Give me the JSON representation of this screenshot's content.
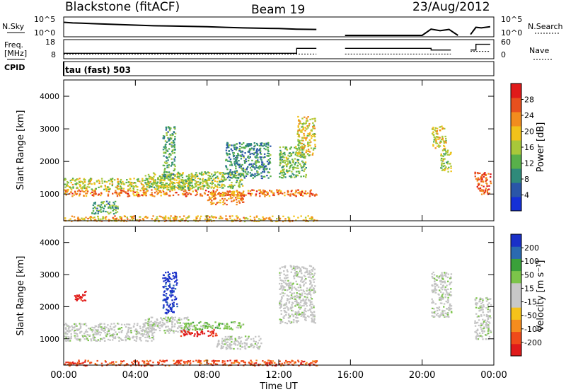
{
  "header": {
    "station": "Blackstone (fitACF)",
    "beam": "Beam 19",
    "date": "23/Aug/2012"
  },
  "strip_labels": {
    "nsky": "N.Sky",
    "freq_line1": "Freq.",
    "freq_line2": "[MHz]",
    "cpid": "CPID",
    "nsearch": "N.Search",
    "nave": "Nave",
    "cpid_value": "tau (fast) 503",
    "noise_top_left": "10^5",
    "noise_bot_left": "10^0",
    "noise_top_right": "10^5",
    "noise_bot_right": "10^0",
    "freq_top_left": "18",
    "freq_bot_left": "8",
    "freq_top_right": "60",
    "freq_bot_right": "0"
  },
  "axes": {
    "ylabel": "Slant Range [km]",
    "xlabel": "Time UT",
    "power_label": "Power [dB]",
    "velocity_label": "Velocity [m s⁻¹]"
  },
  "colors": {
    "power_scale": [
      "#1530d6",
      "#2a56a8",
      "#2f8a7a",
      "#58b04a",
      "#a8c83a",
      "#f2c21a",
      "#f28c1e",
      "#e8501e",
      "#e01a1a"
    ],
    "velocity_scale": [
      "#e01a1a",
      "#f04a1a",
      "#f58c1e",
      "#f5c21a",
      "#c8c8c8",
      "#c8c8c8",
      "#7cc44a",
      "#3aa03a",
      "#2a6ab0",
      "#1a30c8"
    ],
    "ground_scatter": "#c4c4c4"
  },
  "chart_data": [
    {
      "type": "line",
      "title": "N.Sky / N.Search",
      "x_unit": "hours UT",
      "xlim": [
        0,
        24
      ],
      "ylim_log10": [
        0,
        5
      ],
      "segments": [
        {
          "x": [
            0,
            0.5,
            1,
            2,
            3,
            4,
            5,
            6,
            7,
            8,
            9,
            10,
            11,
            12,
            13,
            14.1
          ],
          "y_log10": [
            4.2,
            4.0,
            3.9,
            3.7,
            3.5,
            3.3,
            3.1,
            3.0,
            2.9,
            2.8,
            2.6,
            2.4,
            2.3,
            2.2,
            2.0,
            1.9
          ]
        },
        {
          "x": [
            15.7,
            17,
            18,
            19,
            20,
            20.5,
            21,
            21.5,
            22
          ],
          "y_log10": [
            0,
            0,
            0,
            0,
            0,
            2.0,
            1.5,
            1.9,
            0
          ]
        },
        {
          "x": [
            22.7,
            23,
            23.3,
            23.8
          ],
          "y_log10": [
            0.3,
            2.6,
            2.4,
            2.8
          ]
        }
      ]
    },
    {
      "type": "line",
      "title": "Freq. / Nave",
      "x_unit": "hours UT",
      "xlim": [
        0,
        24
      ],
      "freq_ylim": [
        8,
        18
      ],
      "freq_segments": [
        {
          "x": [
            0,
            13.0,
            13.0,
            14.1
          ],
          "y": [
            10.5,
            10.5,
            13.5,
            13.5
          ]
        },
        {
          "x": [
            15.7,
            20.5,
            20.5,
            21.6
          ],
          "y": [
            13.5,
            13.5,
            12.5,
            12.5
          ]
        },
        {
          "x": [
            22.7,
            23.0,
            23.0,
            23.8
          ],
          "y": [
            12.5,
            12.5,
            16.0,
            16.0
          ]
        }
      ],
      "nave_ylim": [
        0,
        60
      ],
      "nave_segments": [
        {
          "x": [
            0,
            14.1
          ],
          "y": [
            12,
            12
          ]
        },
        {
          "x": [
            15.7,
            21.6
          ],
          "y": [
            12,
            12
          ]
        },
        {
          "x": [
            22.7,
            23.8
          ],
          "y": [
            22,
            22
          ]
        }
      ]
    },
    {
      "type": "heatmap",
      "title": "Power",
      "xlabel": "Time UT",
      "ylabel": "Slant Range [km]",
      "x_ticks": [
        "00:00",
        "04:00",
        "08:00",
        "12:00",
        "16:00",
        "20:00",
        "00:00"
      ],
      "y_ticks": [
        "1000",
        "2000",
        "3000",
        "4000"
      ],
      "xlim": [
        0,
        24
      ],
      "ylim": [
        180,
        4500
      ],
      "colorbar": {
        "label": "Power [dB]",
        "ticks": [
          "4",
          "8",
          "12",
          "16",
          "20",
          "24",
          "28"
        ],
        "range": [
          0,
          30
        ]
      },
      "echo_bands": [
        {
          "t0": 0.0,
          "t1": 14.1,
          "r0": 950,
          "r1": 1150,
          "level": 24
        },
        {
          "t0": 0.0,
          "t1": 8.0,
          "r0": 1150,
          "r1": 1500,
          "level": 16
        },
        {
          "t0": 4.5,
          "t1": 10.0,
          "r0": 1200,
          "r1": 1700,
          "level": 14
        },
        {
          "t0": 8.0,
          "t1": 10.0,
          "r0": 700,
          "r1": 1100,
          "level": 22
        },
        {
          "t0": 9.0,
          "t1": 11.5,
          "r0": 1500,
          "r1": 2600,
          "level": 8
        },
        {
          "t0": 12.0,
          "t1": 13.5,
          "r0": 1500,
          "r1": 2500,
          "level": 12
        },
        {
          "t0": 13.0,
          "t1": 14.0,
          "r0": 2200,
          "r1": 3400,
          "level": 18
        },
        {
          "t0": 5.5,
          "t1": 6.2,
          "r0": 1500,
          "r1": 3100,
          "level": 10
        },
        {
          "t0": 1.5,
          "t1": 3.0,
          "r0": 400,
          "r1": 800,
          "level": 10
        },
        {
          "t0": 20.5,
          "t1": 21.3,
          "r0": 2400,
          "r1": 3100,
          "level": 18
        },
        {
          "t0": 21.0,
          "t1": 21.6,
          "r0": 1700,
          "r1": 2400,
          "level": 14
        },
        {
          "t0": 22.9,
          "t1": 23.8,
          "r0": 1000,
          "r1": 1700,
          "level": 26
        },
        {
          "t0": 0.0,
          "t1": 14.1,
          "r0": 180,
          "r1": 350,
          "level": 20
        }
      ]
    },
    {
      "type": "heatmap",
      "title": "Velocity",
      "xlabel": "Time UT",
      "ylabel": "Slant Range [km]",
      "x_ticks": [
        "00:00",
        "04:00",
        "08:00",
        "12:00",
        "16:00",
        "20:00",
        "00:00"
      ],
      "y_ticks": [
        "1000",
        "2000",
        "3000",
        "4000"
      ],
      "xlim": [
        0,
        24
      ],
      "ylim": [
        180,
        4500
      ],
      "colorbar": {
        "label": "Velocity [m s⁻¹]",
        "ticks": [
          "-200",
          "-100",
          "-50",
          "-15",
          "15",
          "50",
          "100",
          "200"
        ]
      },
      "echo_bands": [
        {
          "t0": 0.0,
          "t1": 5.0,
          "r0": 950,
          "r1": 1500,
          "velocity": 0,
          "ground": true
        },
        {
          "t0": 4.5,
          "t1": 7.0,
          "r0": 1200,
          "r1": 1700,
          "velocity": 0,
          "ground": true
        },
        {
          "t0": 6.5,
          "t1": 8.5,
          "r0": 1100,
          "r1": 1300,
          "velocity": -200
        },
        {
          "t0": 6.5,
          "t1": 10.0,
          "r0": 1300,
          "r1": 1550,
          "velocity": 60
        },
        {
          "t0": 5.5,
          "t1": 6.3,
          "r0": 1800,
          "r1": 3100,
          "velocity": 200
        },
        {
          "t0": 8.5,
          "t1": 11.0,
          "r0": 700,
          "r1": 1100,
          "velocity": 0,
          "ground": true
        },
        {
          "t0": 12.0,
          "t1": 14.0,
          "r0": 1500,
          "r1": 3300,
          "velocity": 0,
          "ground": true
        },
        {
          "t0": 0.5,
          "t1": 1.2,
          "r0": 2200,
          "r1": 2500,
          "velocity": -200
        },
        {
          "t0": 20.5,
          "t1": 21.6,
          "r0": 1700,
          "r1": 3100,
          "velocity": 0,
          "ground": true
        },
        {
          "t0": 22.9,
          "t1": 23.8,
          "r0": 1000,
          "r1": 2300,
          "velocity": 0,
          "ground": true
        },
        {
          "t0": 0.0,
          "t1": 14.1,
          "r0": 180,
          "r1": 350,
          "velocity": -80
        }
      ]
    }
  ]
}
